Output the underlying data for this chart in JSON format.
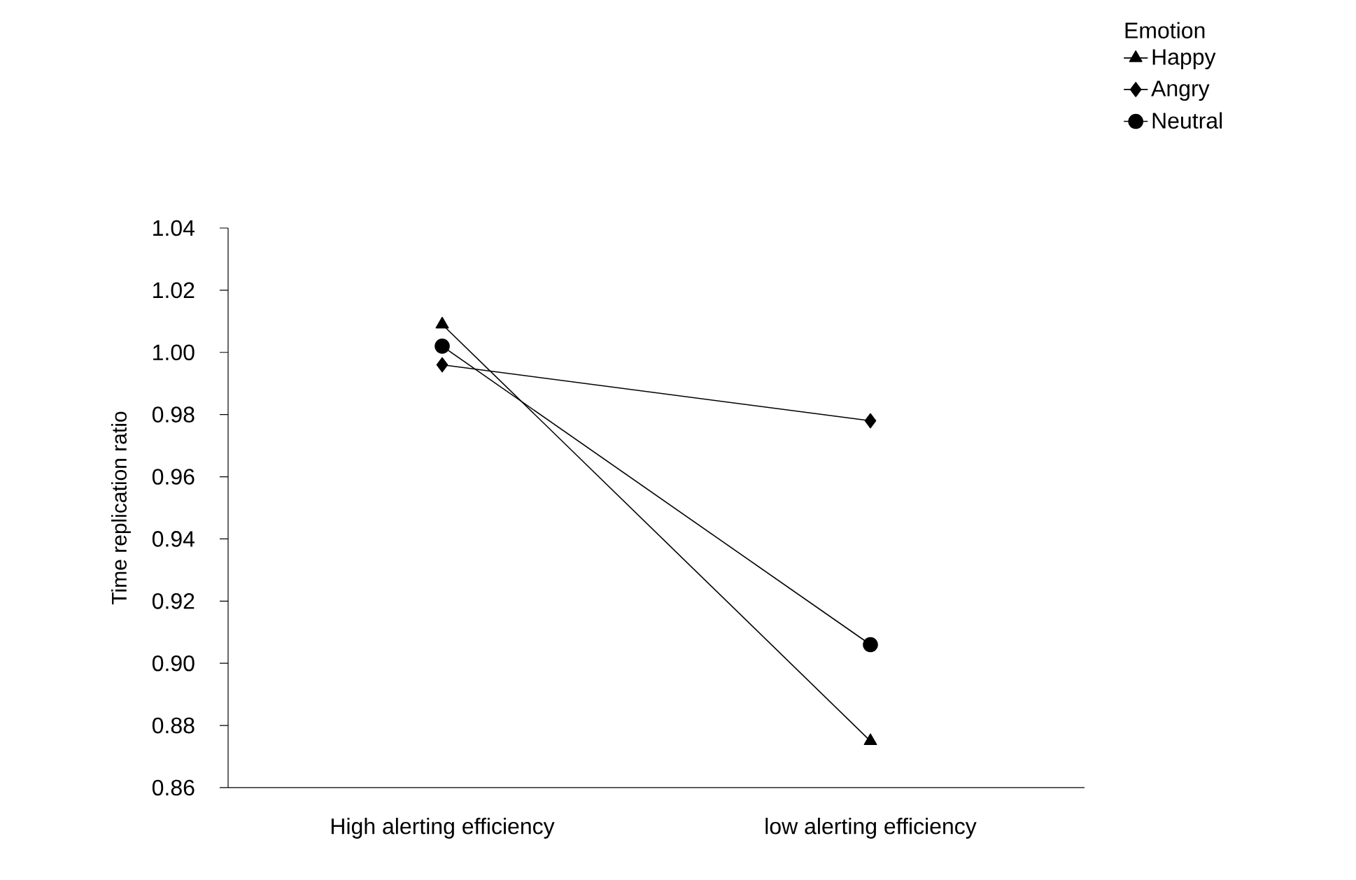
{
  "chart_data": {
    "type": "line",
    "ylabel": "Time replication ratio",
    "legend_title": "Emotion",
    "categories": [
      "High alerting efficiency",
      "low alerting efficiency"
    ],
    "series": [
      {
        "name": "Happy",
        "color": "#000000",
        "marker": "triangle",
        "values": [
          1.009,
          0.875
        ]
      },
      {
        "name": "Angry",
        "color": "#000000",
        "marker": "diamond",
        "values": [
          0.996,
          0.978
        ]
      },
      {
        "name": "Neutral",
        "color": "#000000",
        "marker": "circle",
        "values": [
          1.002,
          0.906
        ]
      }
    ],
    "ylim": [
      0.86,
      1.04
    ],
    "yticks": [
      {
        "value": 0.86,
        "label": "0.86"
      },
      {
        "value": 0.88,
        "label": "0.88"
      },
      {
        "value": 0.9,
        "label": "0.90"
      },
      {
        "value": 0.92,
        "label": "0.92"
      },
      {
        "value": 0.94,
        "label": "0.94"
      },
      {
        "value": 0.96,
        "label": "0.96"
      },
      {
        "value": 0.98,
        "label": "0.98"
      },
      {
        "value": 1.0,
        "label": "1.00"
      },
      {
        "value": 1.02,
        "label": "1.02"
      },
      {
        "value": 1.04,
        "label": "1.04"
      }
    ],
    "legend": "top right",
    "grid": false,
    "line_style": "solid"
  }
}
